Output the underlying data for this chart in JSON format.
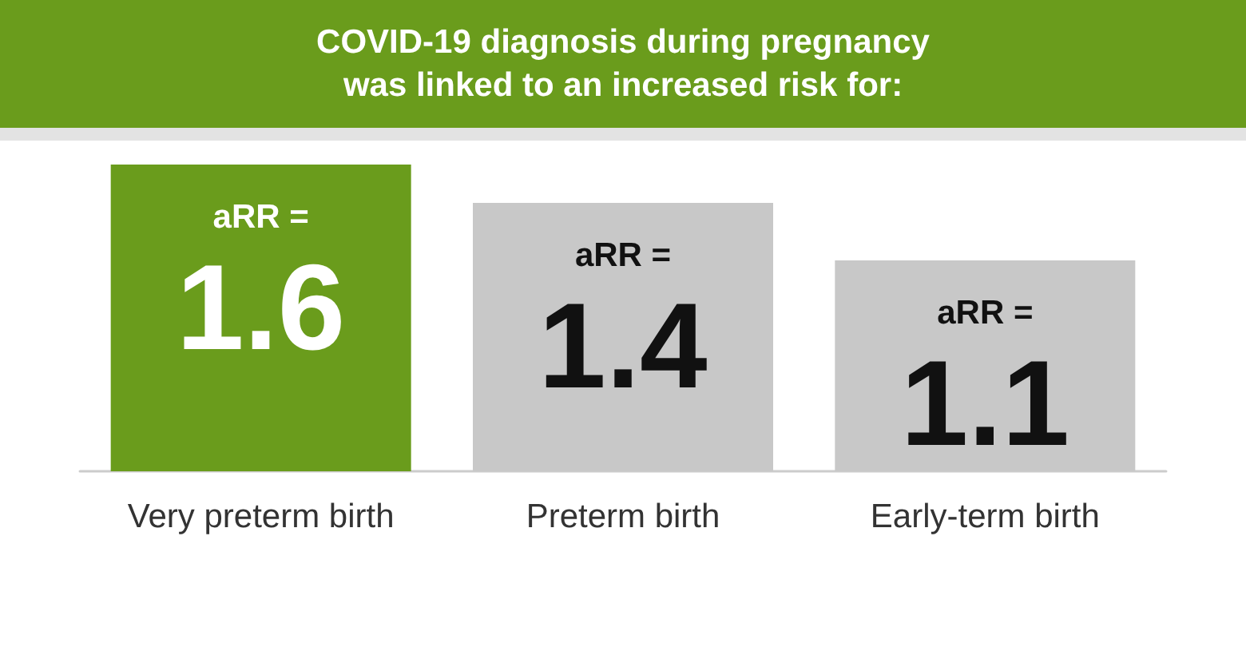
{
  "chart_data": {
    "type": "bar",
    "title": "COVID-19 diagnosis during pregnancy\nwas linked to an increased risk for:",
    "categories": [
      "Very preterm birth",
      "Preterm birth",
      "Early-term birth"
    ],
    "values": [
      1.6,
      1.4,
      1.1
    ],
    "colors": [
      "#6a9c1c",
      "#c8c8c8",
      "#c8c8c8"
    ],
    "value_labels": [
      "aRR =\n1.6",
      "aRR =\n1.4",
      "aRR =\n1.1"
    ],
    "ylim": [
      0,
      1.6
    ],
    "grid": false
  }
}
